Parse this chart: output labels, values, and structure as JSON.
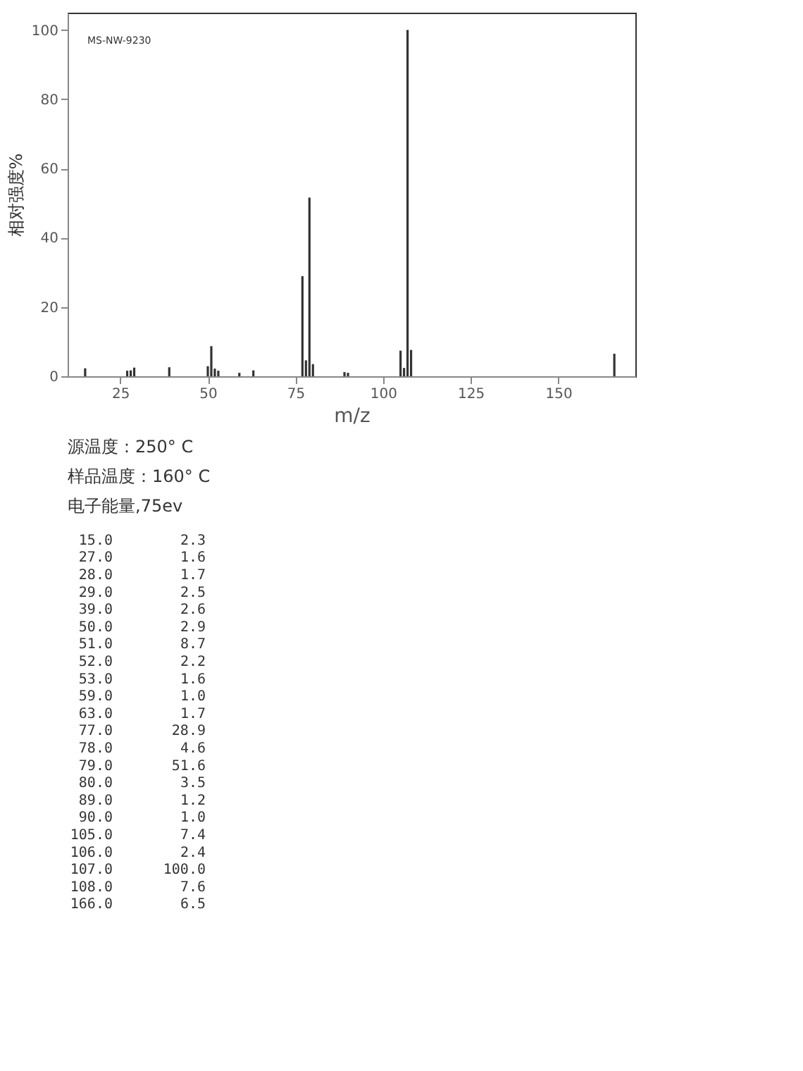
{
  "chart_data": {
    "type": "bar",
    "xlabel": "m/z",
    "ylabel": "相对强度%",
    "x": [
      15,
      27,
      28,
      29,
      39,
      50,
      51,
      52,
      53,
      59,
      63,
      77,
      78,
      79,
      80,
      89,
      90,
      105,
      106,
      107,
      108,
      166
    ],
    "values": [
      2.3,
      1.6,
      1.7,
      2.5,
      2.6,
      2.9,
      8.7,
      2.2,
      1.6,
      1.0,
      1.7,
      28.9,
      4.6,
      51.6,
      3.5,
      1.2,
      1.0,
      7.4,
      2.4,
      100.0,
      7.6,
      6.5
    ],
    "color": "#333333",
    "xlim": [
      10,
      172
    ],
    "xticks": [
      25,
      50,
      75,
      100,
      125,
      150
    ],
    "ylim": [
      0,
      105
    ],
    "yticks": [
      0,
      20,
      40,
      60,
      80,
      100
    ],
    "grid": false,
    "annotations": [
      "MS-NW-9230",
      "源温度：250° C",
      "样品温度：160° C",
      "电子能量,75ev",
      "15.0",
      "2.3",
      "27.0",
      "1.6",
      "28.0",
      "1.7",
      "29.0",
      "2.5",
      "39.0",
      "2.6",
      "50.0",
      "2.9",
      "51.0",
      "8.7",
      "52.0",
      "2.2",
      "53.0",
      "1.6",
      "59.0",
      "1.0",
      "63.0",
      "1.7",
      "77.0",
      "28.9",
      "78.0",
      "4.6",
      "79.0",
      "51.6",
      "80.0",
      "3.5",
      "89.0",
      "1.2",
      "90.0",
      "1.0",
      "105.0",
      "7.4",
      "106.0",
      "2.4",
      "107.0",
      "100.0",
      "108.0",
      "7.6",
      "166.0",
      "6.5"
    ]
  }
}
